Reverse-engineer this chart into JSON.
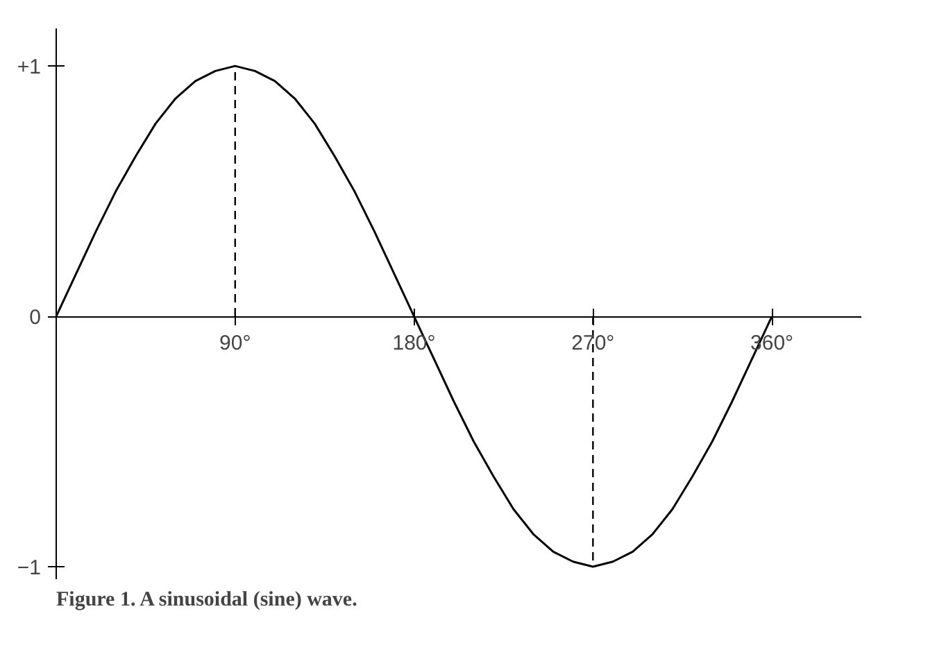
{
  "chart_data": {
    "type": "line",
    "x": [
      0,
      10,
      20,
      30,
      40,
      50,
      60,
      70,
      80,
      90,
      100,
      110,
      120,
      130,
      140,
      150,
      160,
      170,
      180,
      190,
      200,
      210,
      220,
      230,
      240,
      250,
      260,
      270,
      280,
      290,
      300,
      310,
      320,
      330,
      340,
      350,
      360
    ],
    "series": [
      {
        "color": "#000000",
        "values": [
          0,
          0.17,
          0.34,
          0.5,
          0.64,
          0.77,
          0.87,
          0.94,
          0.98,
          1,
          0.98,
          0.94,
          0.87,
          0.77,
          0.64,
          0.5,
          0.34,
          0.17,
          0,
          -0.17,
          -0.34,
          -0.5,
          -0.64,
          -0.77,
          -0.87,
          -0.94,
          -0.98,
          -1,
          -0.98,
          -0.94,
          -0.87,
          -0.77,
          -0.64,
          -0.5,
          -0.34,
          -0.17,
          0
        ]
      }
    ],
    "xlim": [
      0,
      405
    ],
    "ylim": [
      -1.05,
      1.15
    ],
    "xticks": [
      {
        "value": 90,
        "label": "90°"
      },
      {
        "value": 180,
        "label": "180°"
      },
      {
        "value": 270,
        "label": "270°"
      },
      {
        "value": 360,
        "label": "360°"
      }
    ],
    "yticks": [
      {
        "value": 1,
        "label": "+1"
      },
      {
        "value": 0,
        "label": "0"
      },
      {
        "value": -1,
        "label": "−1"
      }
    ],
    "ref_lines": [
      {
        "axis": "x",
        "value": 90,
        "line_style": "dashed"
      },
      {
        "axis": "x",
        "value": 270,
        "line_style": "dashed"
      }
    ],
    "annotations": [
      "Figure 1. A sinusoidal (sine) wave."
    ],
    "grid": false,
    "marker": "none",
    "line_style": "solid"
  }
}
